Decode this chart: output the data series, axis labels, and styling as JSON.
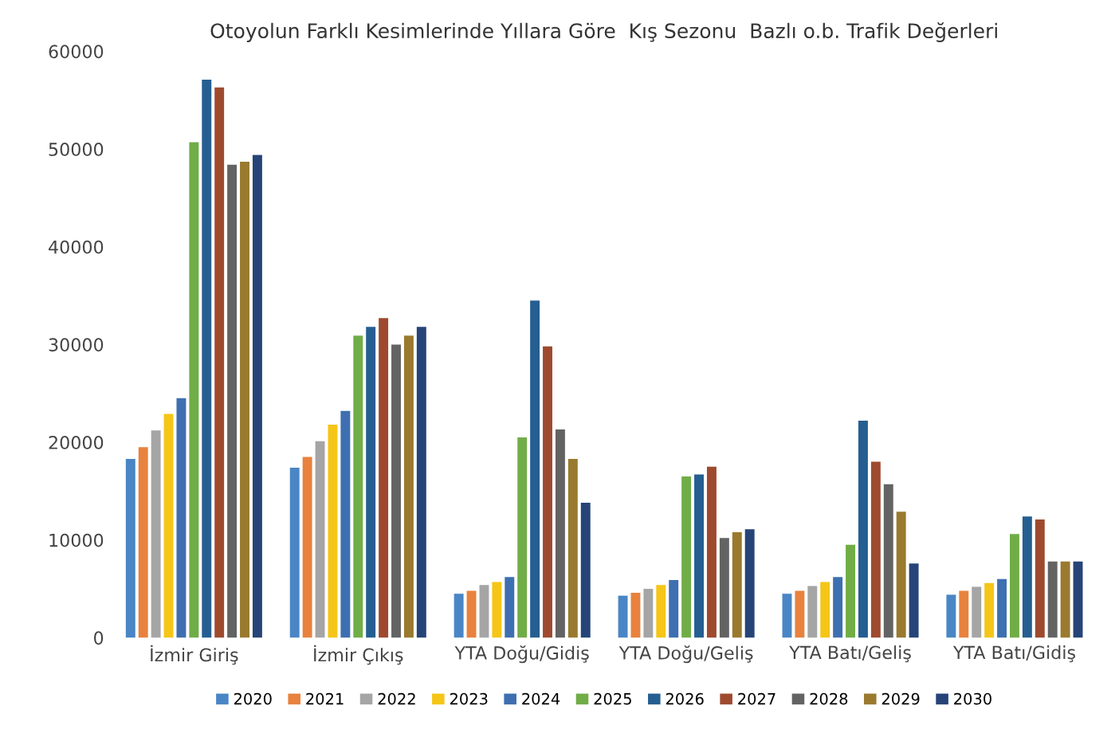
{
  "chart_data": {
    "type": "bar",
    "title": "Otoyolun Farklı Kesimlerinde Yıllara Göre  Kış Sezonu  Bazlı o.b. Trafik Değerleri",
    "categories": [
      "İzmir Giriş",
      "İzmir Çıkış",
      "YTA Doğu/Gidiş",
      "YTA Doğu/Geliş",
      "YTA Batı/Geliş",
      "YTA Batı/Gidiş"
    ],
    "series": [
      {
        "name": "2020",
        "color": "#4a86c5",
        "values": [
          18300,
          17400,
          4500,
          4300,
          4500,
          4400
        ]
      },
      {
        "name": "2021",
        "color": "#e8823e",
        "values": [
          19500,
          18500,
          4800,
          4600,
          4800,
          4800
        ]
      },
      {
        "name": "2022",
        "color": "#a5a5a5",
        "values": [
          21200,
          20100,
          5400,
          5000,
          5300,
          5200
        ]
      },
      {
        "name": "2023",
        "color": "#f5c518",
        "values": [
          22900,
          21800,
          5700,
          5400,
          5700,
          5600
        ]
      },
      {
        "name": "2024",
        "color": "#3e6fb0",
        "values": [
          24500,
          23200,
          6200,
          5900,
          6200,
          6000
        ]
      },
      {
        "name": "2025",
        "color": "#70ad47",
        "values": [
          50700,
          30900,
          20500,
          16500,
          9500,
          10600
        ]
      },
      {
        "name": "2026",
        "color": "#255e91",
        "values": [
          57100,
          31800,
          34500,
          16700,
          22200,
          12400
        ]
      },
      {
        "name": "2027",
        "color": "#9e4a2f",
        "values": [
          56300,
          32700,
          29800,
          17500,
          18000,
          12100
        ]
      },
      {
        "name": "2028",
        "color": "#636363",
        "values": [
          48400,
          30000,
          21300,
          10200,
          15700,
          7800
        ]
      },
      {
        "name": "2029",
        "color": "#997a2e",
        "values": [
          48700,
          30900,
          18300,
          10800,
          12900,
          7800
        ]
      },
      {
        "name": "2030",
        "color": "#264478",
        "values": [
          49400,
          31800,
          13800,
          11100,
          7600,
          7800
        ]
      }
    ],
    "ylim": [
      0,
      60000
    ],
    "yticks": [
      0,
      10000,
      20000,
      30000,
      40000,
      50000,
      60000
    ],
    "grid": false,
    "legend": "bottom"
  }
}
